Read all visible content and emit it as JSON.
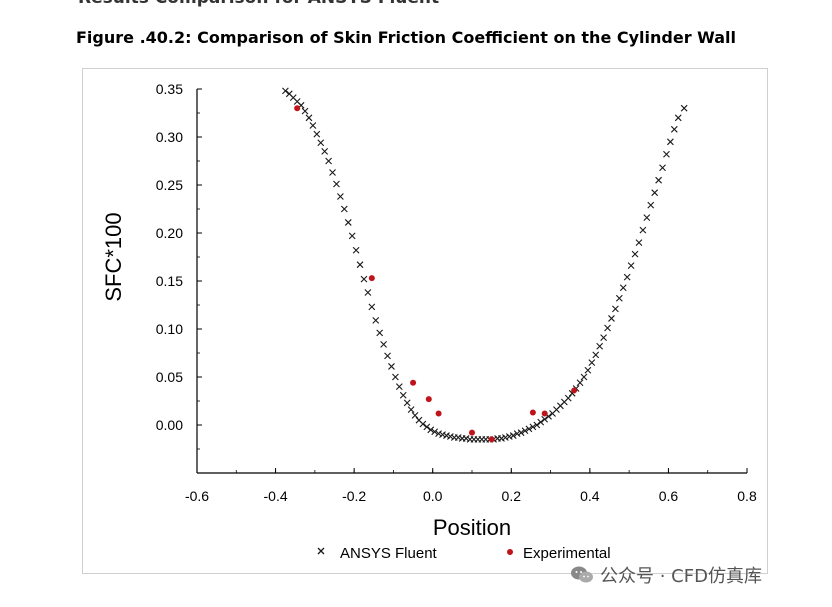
{
  "page": {
    "partial_heading": "Results Comparison for ANSYS Fluent",
    "figure_caption": "Figure .40.2: Comparison of Skin Friction Coefficient on the Cylinder Wall",
    "watermark": "公众号 · CFD仿真库"
  },
  "colors": {
    "fluent": "#1a1a1a",
    "experimental": "#c0141a",
    "axis": "#000000"
  },
  "chart_data": {
    "type": "scatter",
    "title": "",
    "xlabel": "Position",
    "ylabel": "SFC*100",
    "xlim": [
      -0.6,
      0.8
    ],
    "ylim": [
      -0.05,
      0.35
    ],
    "xticks": [
      "-0.6",
      "-0.4",
      "-0.2",
      "0.0",
      "0.2",
      "0.4",
      "0.6",
      "0.8"
    ],
    "yticks": [
      "0.35",
      "0.30",
      "0.25",
      "0.20",
      "0.15",
      "0.10",
      "0.05",
      "0.00"
    ],
    "grid": false,
    "legend_position": "bottom",
    "series": [
      {
        "name": "ANSYS Fluent",
        "marker": "x",
        "x": [
          -0.375,
          -0.365,
          -0.355,
          -0.345,
          -0.335,
          -0.325,
          -0.315,
          -0.305,
          -0.295,
          -0.285,
          -0.275,
          -0.265,
          -0.255,
          -0.245,
          -0.235,
          -0.225,
          -0.215,
          -0.205,
          -0.195,
          -0.185,
          -0.175,
          -0.165,
          -0.155,
          -0.145,
          -0.135,
          -0.125,
          -0.115,
          -0.105,
          -0.095,
          -0.085,
          -0.075,
          -0.065,
          -0.055,
          -0.045,
          -0.035,
          -0.025,
          -0.015,
          -0.005,
          0.005,
          0.015,
          0.025,
          0.035,
          0.045,
          0.055,
          0.065,
          0.075,
          0.085,
          0.095,
          0.105,
          0.115,
          0.125,
          0.135,
          0.145,
          0.155,
          0.165,
          0.175,
          0.185,
          0.195,
          0.205,
          0.215,
          0.225,
          0.235,
          0.245,
          0.255,
          0.265,
          0.275,
          0.285,
          0.295,
          0.305,
          0.315,
          0.325,
          0.335,
          0.345,
          0.355,
          0.365,
          0.375,
          0.385,
          0.395,
          0.405,
          0.415,
          0.425,
          0.435,
          0.445,
          0.455,
          0.465,
          0.475,
          0.485,
          0.495,
          0.505,
          0.515,
          0.525,
          0.535,
          0.545,
          0.555,
          0.565,
          0.575,
          0.585,
          0.595,
          0.605,
          0.615,
          0.625,
          0.64
        ],
        "y": [
          0.348,
          0.345,
          0.341,
          0.337,
          0.333,
          0.327,
          0.32,
          0.312,
          0.303,
          0.294,
          0.285,
          0.275,
          0.263,
          0.251,
          0.238,
          0.225,
          0.211,
          0.197,
          0.182,
          0.167,
          0.152,
          0.138,
          0.123,
          0.109,
          0.096,
          0.084,
          0.072,
          0.061,
          0.05,
          0.04,
          0.031,
          0.023,
          0.016,
          0.01,
          0.005,
          0.001,
          -0.002,
          -0.005,
          -0.007,
          -0.009,
          -0.01,
          -0.011,
          -0.012,
          -0.013,
          -0.013,
          -0.014,
          -0.014,
          -0.015,
          -0.015,
          -0.015,
          -0.015,
          -0.015,
          -0.015,
          -0.015,
          -0.014,
          -0.014,
          -0.013,
          -0.012,
          -0.011,
          -0.009,
          -0.008,
          -0.006,
          -0.004,
          -0.002,
          0.0,
          0.003,
          0.006,
          0.009,
          0.012,
          0.016,
          0.02,
          0.024,
          0.028,
          0.033,
          0.038,
          0.044,
          0.05,
          0.057,
          0.065,
          0.073,
          0.082,
          0.091,
          0.101,
          0.111,
          0.121,
          0.132,
          0.143,
          0.154,
          0.166,
          0.178,
          0.19,
          0.203,
          0.216,
          0.229,
          0.242,
          0.255,
          0.268,
          0.282,
          0.295,
          0.308,
          0.32,
          0.33
        ]
      },
      {
        "name": "Experimental",
        "marker": "dot",
        "x": [
          -0.345,
          -0.155,
          -0.05,
          -0.01,
          0.015,
          0.1,
          0.15,
          0.255,
          0.285,
          0.36
        ],
        "y": [
          0.33,
          0.153,
          0.044,
          0.027,
          0.012,
          -0.008,
          -0.015,
          0.013,
          0.012,
          0.036
        ]
      }
    ]
  }
}
